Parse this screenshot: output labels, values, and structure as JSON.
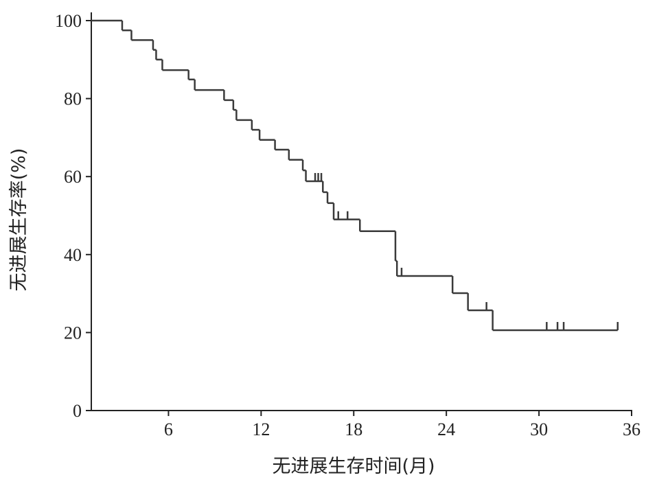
{
  "chart_data": {
    "type": "step",
    "xlabel": "无进展生存时间(月)",
    "ylabel": "无进展生存率(%)",
    "x": [
      1,
      3.0,
      3.6,
      5.0,
      5.2,
      5.6,
      7.3,
      7.7,
      9.6,
      10.2,
      10.4,
      11.4,
      11.9,
      12.9,
      13.8,
      14.7,
      14.9,
      16.0,
      16.3,
      16.7,
      18.4,
      20.7,
      20.8,
      24.4,
      25.4,
      27.0
    ],
    "values": [
      100,
      97.5,
      95,
      92.5,
      90,
      87.3,
      84.9,
      82.2,
      79.6,
      77.1,
      74.5,
      72,
      69.4,
      66.9,
      64.3,
      61.6,
      58.8,
      56,
      53.2,
      49,
      46,
      38.4,
      34.5,
      30.1,
      25.7,
      20.6
    ],
    "end_x": 35.1,
    "censor_x": [
      15.5,
      15.7,
      15.9,
      17.0,
      17.6,
      21.1,
      26.6,
      30.5,
      31.2,
      31.6,
      35.1
    ],
    "censor_values": [
      58.8,
      58.8,
      58.8,
      49,
      49,
      34.5,
      25.7,
      20.6,
      20.6,
      20.6,
      20.6
    ],
    "color": "#3a3a3a",
    "xlim": [
      1,
      36
    ],
    "xticks": [
      6,
      12,
      18,
      24,
      30,
      36
    ],
    "ylim": [
      0,
      100
    ],
    "yticks": [
      0,
      20,
      40,
      60,
      80,
      100
    ]
  }
}
